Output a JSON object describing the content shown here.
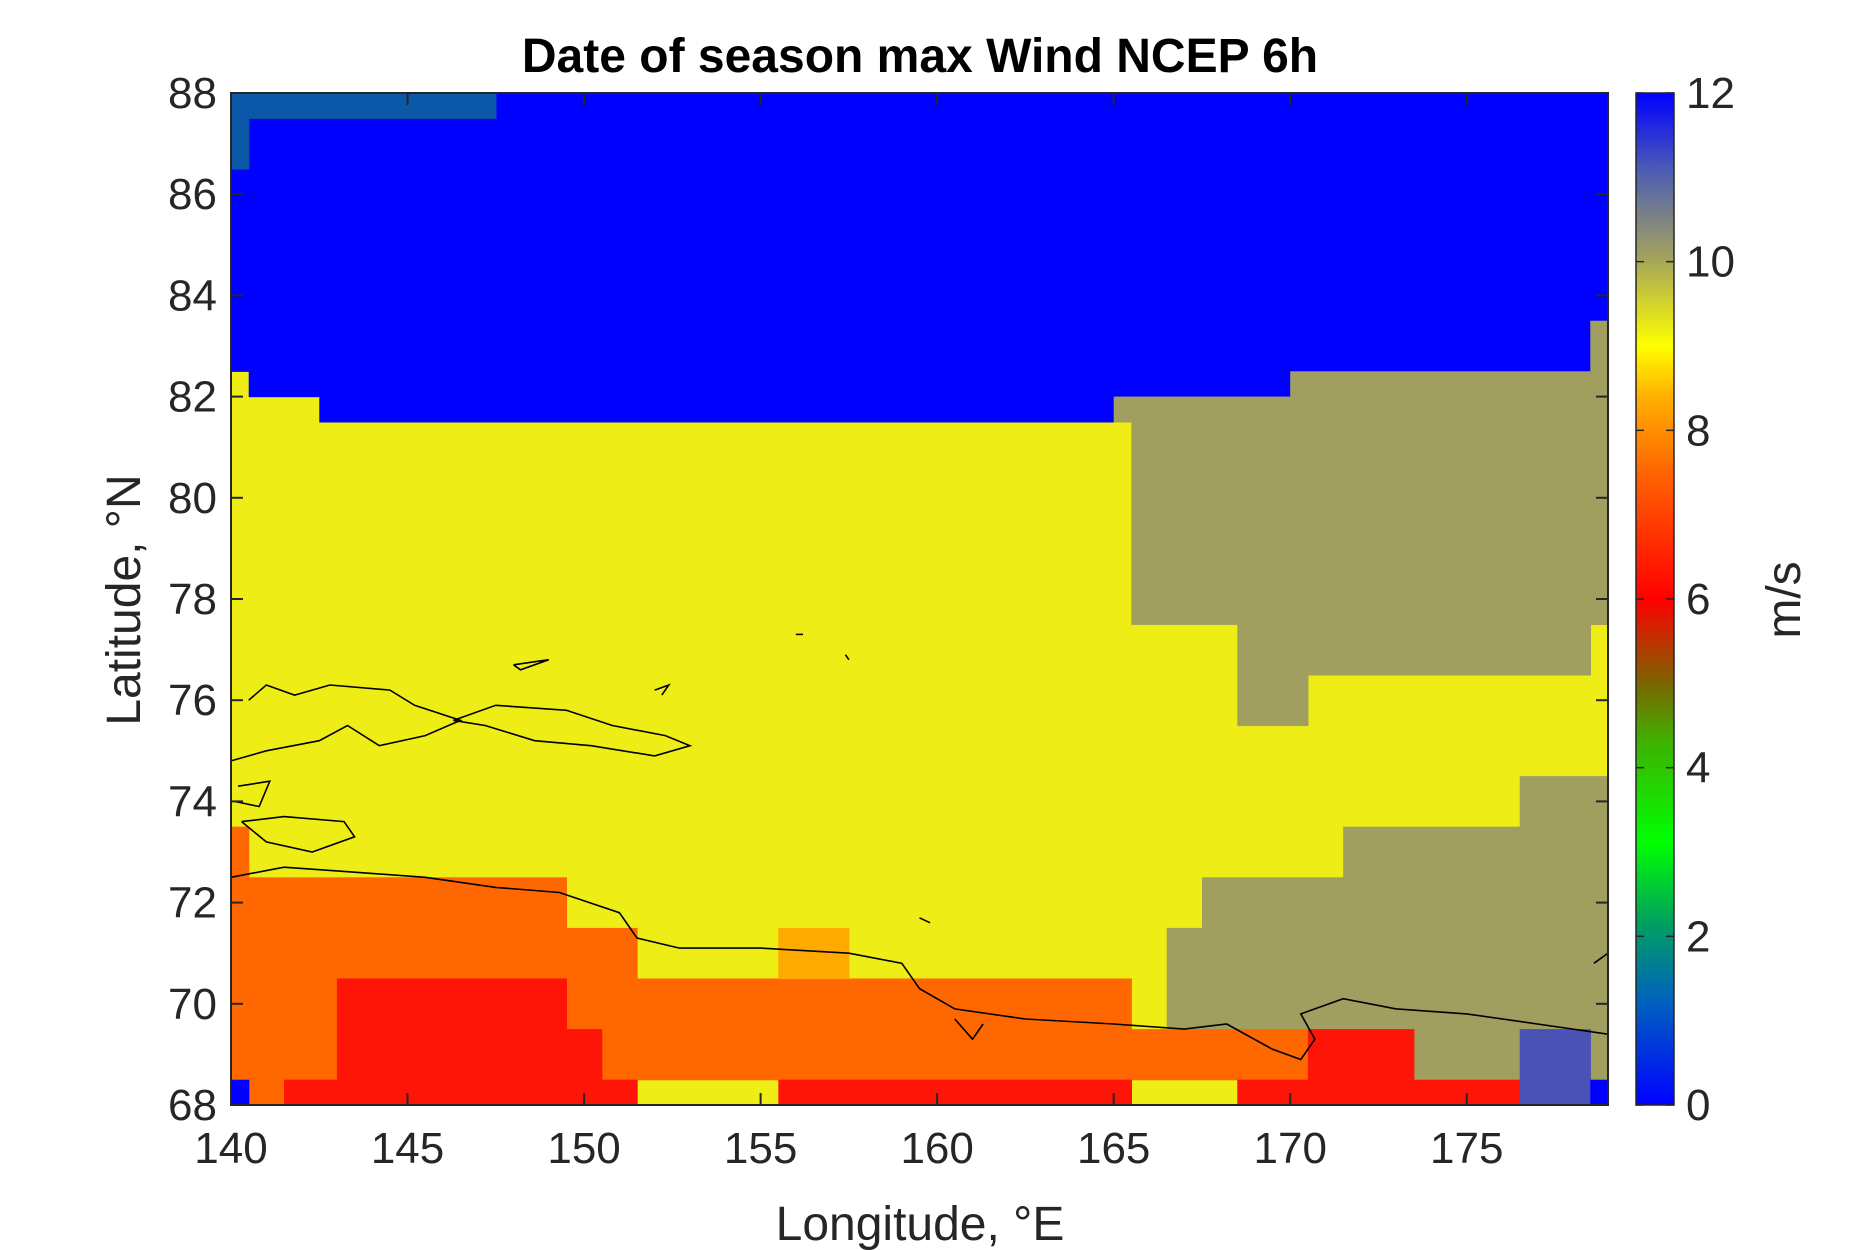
{
  "chart_data": {
    "type": "heatmap",
    "title": "Date of season max Wind NCEP 6h",
    "xlabel": "Longitude, °E",
    "ylabel": "Latitude, °N",
    "xlim": [
      140,
      179
    ],
    "ylim": [
      68,
      88
    ],
    "x_ticks": [
      140,
      145,
      150,
      155,
      160,
      165,
      170,
      175
    ],
    "y_ticks": [
      68,
      70,
      72,
      74,
      76,
      78,
      80,
      82,
      84,
      86,
      88
    ],
    "grid": false,
    "colorbar": {
      "label": "m/s",
      "range": [
        0,
        12
      ],
      "ticks": [
        0,
        2,
        4,
        6,
        8,
        10,
        12
      ],
      "colormap": "custom jet-like (blue-green-red-yellow-olive-blue)"
    },
    "coastlines": true,
    "grid_resolution_deg": 1,
    "value_regions": [
      {
        "description": "north band, latitude >= 82 (to 83.5 near 140-142 E)",
        "value": 12,
        "color": "#0000ff"
      },
      {
        "description": "small patch near 140.5-147.5 E, 87.5-88 N",
        "value": 11,
        "color": "#0b57a8"
      },
      {
        "description": "central and western region 72-82 N",
        "value": 9,
        "color": "#eeee16"
      },
      {
        "description": "north-east region 165-179 E, 70-82 N",
        "value": 10,
        "color": "#a19f5f"
      },
      {
        "description": "coastal region 140-170 E, 68.5-72.5 N",
        "value": 7,
        "color": "#ff6700"
      },
      {
        "description": "inland patches 143-150 E, 155-165 E, 170-177 E near 68-70 N",
        "value": 6,
        "color": "#ff1508"
      },
      {
        "description": "small patch near 155.5-157.5 E, 70.5-71.5 N",
        "value": 8,
        "color": "#ffaa00"
      },
      {
        "description": "small patch near 176.5-178.5 E, 68-69.5 N",
        "value": 11.5,
        "color": "#4a52b5"
      }
    ]
  },
  "colors": {
    "val12": "#0000ff",
    "val11": "#0b57a8",
    "val10": "#a19f5f",
    "val9": "#eeee16",
    "val8": "#ffaa00",
    "val7": "#ff6700",
    "val6": "#ff1508",
    "val115": "#4a52b5"
  }
}
